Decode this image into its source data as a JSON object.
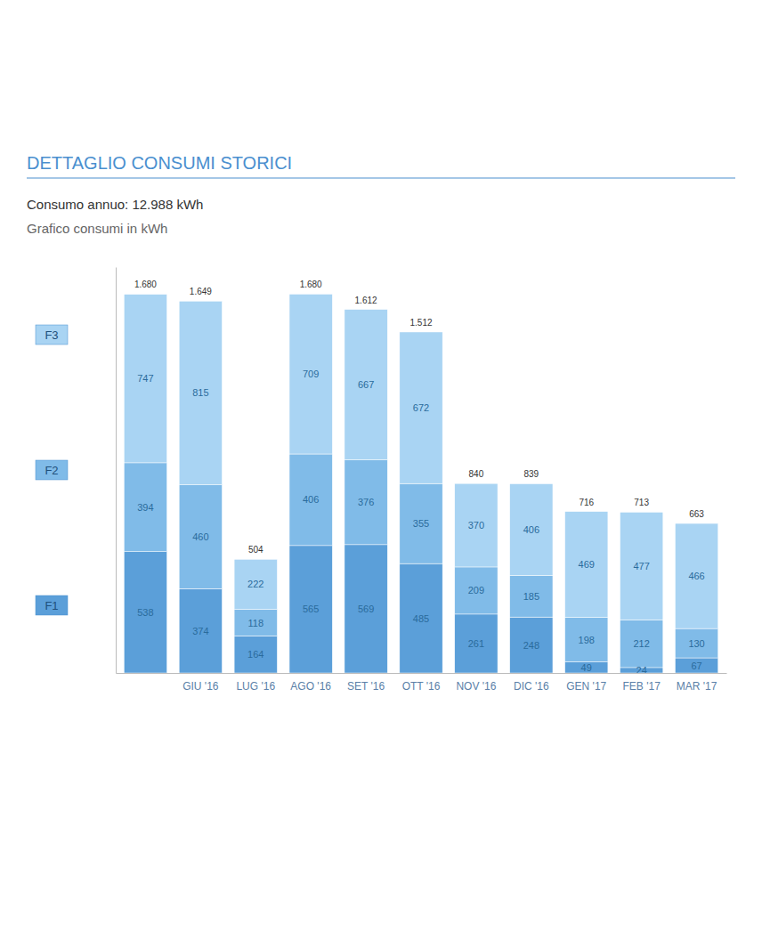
{
  "chart_data": {
    "type": "bar",
    "stacked": true,
    "data_labels": true,
    "title": "DETTAGLIO CONSUMI STORICI",
    "subtitle": "Consumo annuo: 12.988 kWh",
    "ylabel": "Grafico consumi in kWh",
    "categories": [
      null,
      "GIU '16",
      "LUG '16",
      "AGO '16",
      "SET '16",
      "OTT '16",
      "NOV '16",
      "DIC '16",
      "GEN '17",
      "FEB '17",
      "MAR '17"
    ],
    "series": [
      {
        "name": "F1",
        "color": "#5b9fd9",
        "values": [
          538,
          374,
          164,
          565,
          569,
          485,
          261,
          248,
          49,
          24,
          67
        ]
      },
      {
        "name": "F2",
        "color": "#80bbe8",
        "values": [
          394,
          460,
          118,
          406,
          376,
          355,
          209,
          185,
          198,
          212,
          130
        ]
      },
      {
        "name": "F3",
        "color": "#a9d4f3",
        "values": [
          747,
          815,
          222,
          709,
          667,
          672,
          370,
          406,
          469,
          477,
          466
        ]
      }
    ],
    "totals": [
      1680,
      1649,
      504,
      1680,
      1612,
      1512,
      840,
      839,
      716,
      713,
      663
    ],
    "total_labels": [
      "1.680",
      "1.649",
      "504",
      "1.680",
      "1.612",
      "1.512",
      "840",
      "839",
      "716",
      "713",
      "663"
    ],
    "ylim": [
      0,
      1800
    ],
    "tick_labels": "x",
    "legend": "left"
  }
}
